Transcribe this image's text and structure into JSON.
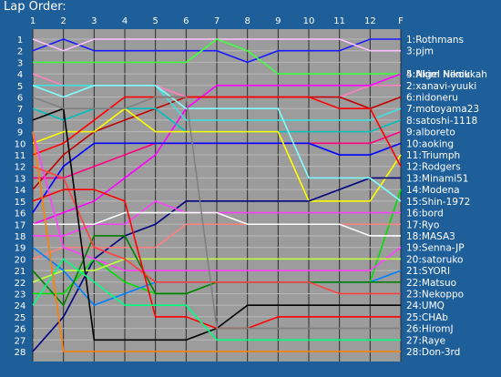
{
  "chart_data": {
    "type": "line",
    "title": "Lap Order:",
    "x_ticks": [
      "1",
      "2",
      "3",
      "4",
      "5",
      "6",
      "7",
      "8",
      "9",
      "10",
      "11",
      "12",
      "F"
    ],
    "positions": [
      "1",
      "2",
      "3",
      "4",
      "5",
      "6",
      "7",
      "8",
      "9",
      "10",
      "11",
      "12",
      "13",
      "14",
      "15",
      "16",
      "17",
      "18",
      "19",
      "20",
      "21",
      "22",
      "23",
      "24",
      "25",
      "26",
      "27",
      "28"
    ],
    "ylim": [
      1,
      28
    ],
    "y_inverted": true,
    "background": "#9c9c9c",
    "grid": true,
    "series": [
      {
        "name": "1:Rothmans",
        "color": "#1a1aff",
        "values": [
          2,
          1,
          2,
          2,
          2,
          2,
          2,
          3,
          2,
          2,
          2,
          1,
          1
        ]
      },
      {
        "name": "2:xanavi-yuuki",
        "color": "#ff80c0",
        "values": [
          4,
          5,
          5,
          5,
          5,
          6,
          6,
          6,
          6,
          6,
          6,
          5,
          5
        ]
      },
      {
        "name": "3:pjm",
        "color": "#ffc0ff",
        "values": [
          1,
          2,
          1,
          1,
          1,
          1,
          1,
          1,
          1,
          1,
          1,
          2,
          2
        ]
      },
      {
        "name": "4:Akim Nenikkah",
        "color": "#40ff40",
        "values": [
          3,
          3,
          3,
          3,
          3,
          3,
          1,
          2,
          4,
          4,
          4,
          4,
          4
        ]
      },
      {
        "name": "5:Nigel Hikou",
        "color": "#ff00ff",
        "values": [
          17,
          16,
          15,
          13,
          11,
          7,
          5,
          5,
          5,
          5,
          5,
          5,
          4
        ]
      },
      {
        "name": "6:nidoneru",
        "color": "#c00000",
        "values": [
          14,
          11,
          9,
          8,
          7,
          6,
          6,
          6,
          6,
          6,
          6,
          7,
          6
        ]
      },
      {
        "name": "7:motoyama23",
        "color": "#40e0e0",
        "values": [
          5,
          5,
          5,
          5,
          5,
          8,
          8,
          8,
          8,
          8,
          8,
          8,
          7
        ]
      },
      {
        "name": "8:satoshi-1118",
        "color": "#00c0c0",
        "values": [
          7,
          8,
          7,
          7,
          7,
          9,
          9,
          9,
          9,
          9,
          9,
          9,
          8
        ]
      },
      {
        "name": "9:alboreto",
        "color": "#ff0080",
        "values": [
          13,
          13,
          12,
          11,
          10,
          10,
          10,
          10,
          10,
          10,
          10,
          10,
          9
        ]
      },
      {
        "name": "10:aoking",
        "color": "#0000ff",
        "values": [
          16,
          12,
          10,
          10,
          10,
          10,
          10,
          10,
          10,
          10,
          11,
          11,
          10
        ]
      },
      {
        "name": "11:Triumph",
        "color": "#ffff00",
        "values": [
          10,
          9,
          9,
          7,
          9,
          9,
          9,
          9,
          9,
          15,
          15,
          15,
          11
        ]
      },
      {
        "name": "12:Rodgers",
        "color": "#ff0000",
        "values": [
          11,
          10,
          8,
          6,
          6,
          6,
          6,
          6,
          6,
          6,
          7,
          7,
          12
        ]
      },
      {
        "name": "13:Minami51",
        "color": "#000080",
        "values": [
          28,
          25,
          20,
          18,
          17,
          15,
          15,
          15,
          15,
          15,
          14,
          13,
          13
        ]
      },
      {
        "name": "14:Modena",
        "color": "#00e000",
        "values": [
          23,
          23,
          20,
          22,
          23,
          23,
          22,
          22,
          22,
          22,
          22,
          22,
          14
        ]
      },
      {
        "name": "15:Shin-1972",
        "color": "#80ffff",
        "values": [
          5,
          6,
          5,
          5,
          5,
          7,
          7,
          7,
          7,
          13,
          13,
          13,
          15
        ]
      },
      {
        "name": "16:bord",
        "color": "#ff40ff",
        "values": [
          18,
          18,
          17,
          17,
          15,
          16,
          16,
          16,
          16,
          16,
          16,
          16,
          16
        ]
      },
      {
        "name": "17:Ryo",
        "color": "#ff8080",
        "values": [
          20,
          19,
          19,
          19,
          19,
          17,
          17,
          17,
          17,
          17,
          17,
          17,
          17
        ]
      },
      {
        "name": "18:MASA3",
        "color": "#ffffff",
        "values": [
          17,
          17,
          17,
          16,
          16,
          16,
          16,
          17,
          17,
          17,
          17,
          18,
          18
        ]
      },
      {
        "name": "19:Senna-JP",
        "color": "#ff40ff",
        "values": [
          9,
          19,
          20,
          21,
          21,
          21,
          21,
          21,
          21,
          21,
          21,
          21,
          19
        ]
      },
      {
        "name": "20:satoruko",
        "color": "#c0ff40",
        "values": [
          22,
          21,
          21,
          20,
          20,
          20,
          20,
          20,
          20,
          20,
          20,
          20,
          20
        ]
      },
      {
        "name": "21:SYORI",
        "color": "#0080ff",
        "values": [
          19,
          21,
          24,
          23,
          22,
          22,
          22,
          22,
          22,
          22,
          22,
          22,
          21
        ]
      },
      {
        "name": "22:Matsuo",
        "color": "#008000",
        "values": [
          21,
          24,
          18,
          18,
          23,
          23,
          22,
          22,
          22,
          22,
          22,
          22,
          22
        ]
      },
      {
        "name": "23:Nekoppo",
        "color": "#ff4040",
        "values": [
          12,
          13,
          19,
          20,
          22,
          22,
          22,
          22,
          22,
          22,
          23,
          23,
          23
        ]
      },
      {
        "name": "24:UMQ",
        "color": "#000000",
        "values": [
          8,
          7,
          27,
          27,
          27,
          27,
          26,
          24,
          24,
          24,
          24,
          24,
          24
        ]
      },
      {
        "name": "25:CHAb",
        "color": "#ff0000",
        "values": [
          15,
          14,
          14,
          15,
          25,
          25,
          26,
          26,
          25,
          25,
          25,
          25,
          25
        ]
      },
      {
        "name": "26:HiromJ",
        "color": "#808080",
        "values": [
          6,
          7,
          7,
          7,
          6,
          6,
          26,
          26,
          26,
          26,
          26,
          26,
          26
        ]
      },
      {
        "name": "27:Raye",
        "color": "#00ff80",
        "values": [
          24,
          20,
          22,
          24,
          24,
          24,
          27,
          27,
          27,
          27,
          27,
          27,
          27
        ]
      },
      {
        "name": "28:Don-3rd",
        "color": "#ff8000",
        "values": [
          9,
          28,
          28,
          28,
          28,
          28,
          28,
          28,
          28,
          28,
          28,
          28,
          28
        ]
      }
    ]
  }
}
